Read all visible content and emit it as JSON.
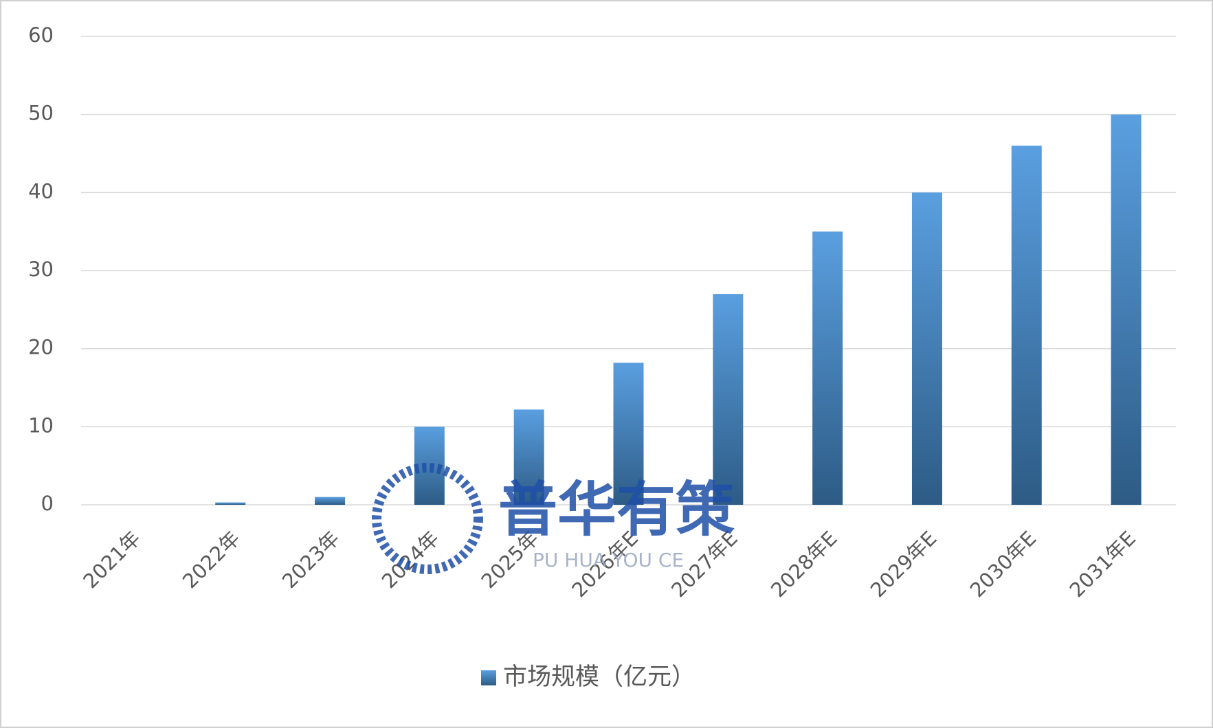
{
  "chart_data": {
    "type": "bar",
    "categories": [
      "2021年",
      "2022年",
      "2023年",
      "2024年",
      "2025年",
      "2026年E",
      "2027年E",
      "2028年E",
      "2029年E",
      "2030年E",
      "2031年E"
    ],
    "series": [
      {
        "name": "市场规模（亿元）",
        "color": "#5a9fe0",
        "values": [
          0,
          0.3,
          1,
          10,
          12.2,
          18.2,
          27,
          35,
          40,
          46,
          50
        ]
      }
    ],
    "ylim": [
      0,
      60
    ],
    "yticks": [
      0,
      10,
      20,
      30,
      40,
      50,
      60
    ],
    "grid": true,
    "legend": "bottom",
    "watermark": "普华有策",
    "watermark_sub": "PU HUA YOU CE"
  }
}
